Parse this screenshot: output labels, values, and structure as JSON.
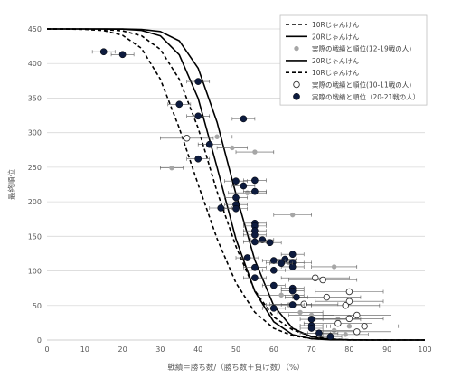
{
  "chart_data": {
    "type": "scatter",
    "xlabel": "戦績＝勝ち数/（勝ち数＋負け数）（%）",
    "ylabel": "最終順位",
    "xlim": [
      0,
      100
    ],
    "ylim": [
      0,
      450
    ],
    "x_ticks": [
      "0",
      "10",
      "20",
      "30",
      "40",
      "50",
      "60",
      "70",
      "80",
      "90",
      "100"
    ],
    "y_ticks": [
      "0",
      "50",
      "100",
      "150",
      "200",
      "250",
      "300",
      "350",
      "400",
      "450"
    ],
    "grid": "horizontal",
    "legend_position": "top-right",
    "colors": {
      "curve": "#000000",
      "gray": "#a6a6a6",
      "dark": "#0d1b3e",
      "grid": "#d9d9d9",
      "errbar": "#595959"
    },
    "curves": [
      {
        "name": "10Rじゃんけん",
        "style": "dashed",
        "x": [
          0,
          5,
          10,
          15,
          20,
          25,
          30,
          35,
          40,
          45,
          50,
          55,
          60,
          65,
          70,
          75,
          80,
          85,
          90,
          95,
          100
        ],
        "y": [
          450,
          449.9,
          449.4,
          447.6,
          440.9,
          422,
          377.3,
          306.6,
          225,
          146.6,
          82.7,
          40.1,
          17,
          6.3,
          2,
          0.6,
          0.1,
          0,
          0,
          0,
          0
        ]
      },
      {
        "name": "20Rじゃんけん",
        "style": "solid",
        "x": [
          0,
          5,
          10,
          15,
          20,
          25,
          30,
          35,
          40,
          45,
          50,
          55,
          60,
          65,
          70,
          75,
          80,
          85,
          90,
          95,
          100
        ],
        "y": [
          450,
          450,
          450,
          449.9,
          449.7,
          447.9,
          440.1,
          412.6,
          349.6,
          250,
          146.1,
          70.4,
          26.4,
          7.9,
          1.9,
          0.3,
          0.1,
          0,
          0,
          0,
          0
        ]
      },
      {
        "name": "20Rじゃんけん",
        "style": "solid",
        "x": [
          0,
          5,
          10,
          15,
          20,
          25,
          30,
          35,
          40,
          45,
          50,
          55,
          60,
          65,
          70,
          75,
          80,
          85,
          90,
          95,
          100
        ],
        "y": [
          450,
          450,
          450,
          450,
          449.9,
          449.4,
          446.3,
          432.9,
          393.2,
          315.1,
          211.1,
          115.6,
          49.7,
          17,
          4.6,
          1,
          0.2,
          0,
          0,
          0,
          0
        ]
      },
      {
        "name": "10Rじゃんけん",
        "style": "dashed",
        "x": [
          0,
          5,
          10,
          15,
          20,
          25,
          30,
          35,
          40,
          45,
          50,
          55,
          60,
          65,
          70,
          75,
          80,
          85,
          90,
          95,
          100
        ],
        "y": [
          450,
          450,
          449.9,
          449.2,
          447.2,
          440.2,
          420.5,
          377.3,
          306.6,
          214.8,
          135.4,
          71.4,
          33.4,
          14.6,
          5.4,
          1.6,
          0.4,
          0.1,
          0,
          0,
          0
        ]
      }
    ],
    "series": [
      {
        "name": "実際の戦績と順位(12-19戦の人)",
        "marker": "gray",
        "points": [
          [
            33,
            249,
            3
          ],
          [
            45,
            294,
            4
          ],
          [
            49,
            278,
            4
          ],
          [
            55,
            272,
            5
          ],
          [
            53,
            213,
            5
          ],
          [
            65,
            181,
            5
          ],
          [
            64,
            112,
            6
          ],
          [
            76,
            106,
            6
          ],
          [
            62,
            65,
            6
          ],
          [
            64,
            51,
            6
          ],
          [
            67,
            40,
            6
          ],
          [
            70,
            36,
            6
          ],
          [
            77,
            30,
            6
          ],
          [
            80,
            20,
            6
          ],
          [
            76,
            14,
            5
          ],
          [
            72,
            10,
            5
          ],
          [
            79,
            8,
            6
          ]
        ]
      },
      {
        "name": "実際の戦績と順位(10-11戦の人)",
        "marker": "open",
        "points": [
          [
            37,
            292,
            7
          ],
          [
            71,
            90,
            9
          ],
          [
            73,
            87,
            9
          ],
          [
            80,
            70,
            9
          ],
          [
            74,
            62,
            9
          ],
          [
            80,
            56,
            9
          ],
          [
            68,
            52,
            9
          ],
          [
            79,
            50,
            9
          ],
          [
            82,
            36,
            9
          ],
          [
            80,
            31,
            9
          ],
          [
            77,
            24,
            9
          ],
          [
            82,
            12,
            9
          ],
          [
            84,
            20,
            9
          ]
        ]
      },
      {
        "name": "実際の戦績と順位（20-21戦の人）",
        "marker": "dark",
        "points": [
          [
            15,
            417,
            3
          ],
          [
            20,
            413,
            3
          ],
          [
            40,
            374,
            3
          ],
          [
            35,
            341,
            3
          ],
          [
            40,
            324,
            3
          ],
          [
            52,
            320,
            3
          ],
          [
            43,
            283,
            3
          ],
          [
            40,
            262,
            3
          ],
          [
            50,
            230,
            3
          ],
          [
            55,
            231,
            3
          ],
          [
            52,
            223,
            3
          ],
          [
            55,
            215,
            3
          ],
          [
            46,
            191,
            3
          ],
          [
            50,
            206,
            3
          ],
          [
            50,
            196,
            3
          ],
          [
            50,
            190,
            3
          ],
          [
            55,
            169,
            3
          ],
          [
            55,
            165,
            3
          ],
          [
            55,
            158,
            3
          ],
          [
            55,
            152,
            3
          ],
          [
            57,
            145,
            3
          ],
          [
            55,
            142,
            3
          ],
          [
            59,
            141,
            3
          ],
          [
            65,
            124,
            3
          ],
          [
            63,
            117,
            3
          ],
          [
            60,
            115,
            3
          ],
          [
            65,
            112,
            3
          ],
          [
            65,
            106,
            3
          ],
          [
            62,
            111,
            3
          ],
          [
            60,
            101,
            3
          ],
          [
            53,
            119,
            3
          ],
          [
            55,
            105,
            3
          ],
          [
            55,
            90,
            3
          ],
          [
            60,
            79,
            3
          ],
          [
            65,
            75,
            3
          ],
          [
            65,
            71,
            3
          ],
          [
            66,
            62,
            3
          ],
          [
            65,
            51,
            3
          ],
          [
            60,
            46,
            3
          ],
          [
            70,
            30,
            3
          ],
          [
            70,
            21,
            3
          ],
          [
            70,
            17,
            3
          ],
          [
            72,
            10,
            3
          ],
          [
            75,
            5,
            3
          ]
        ]
      }
    ],
    "legend": [
      {
        "label": "10Rじゃんけん",
        "kind": "dashed"
      },
      {
        "label": "20Rじゃんけん",
        "kind": "solid"
      },
      {
        "label": "実際の戦績と順位(12-19戦の人)",
        "kind": "gray"
      },
      {
        "label": "20Rじゃんけん",
        "kind": "solid"
      },
      {
        "label": "10Rじゃんけん",
        "kind": "dashed"
      },
      {
        "label": "実際の戦績と順位(10-11戦の人)",
        "kind": "open"
      },
      {
        "label": "実際の戦績と順位（20-21戦の人）",
        "kind": "dark"
      }
    ]
  }
}
